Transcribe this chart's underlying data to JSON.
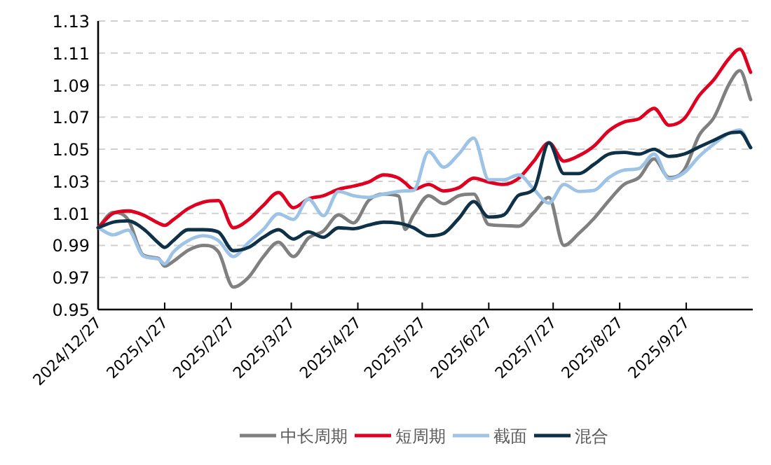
{
  "chart_data": {
    "type": "line",
    "x": [
      "2024-12-27",
      "2025-01-03",
      "2025-01-10",
      "2025-01-17",
      "2025-01-24",
      "2025-01-27",
      "2025-01-31",
      "2025-02-07",
      "2025-02-14",
      "2025-02-21",
      "2025-02-28",
      "2025-03-07",
      "2025-03-14",
      "2025-03-21",
      "2025-03-28",
      "2025-04-04",
      "2025-04-11",
      "2025-04-18",
      "2025-04-25",
      "2025-05-02",
      "2025-05-09",
      "2025-05-16",
      "2025-05-19",
      "2025-05-23",
      "2025-05-30",
      "2025-06-06",
      "2025-06-13",
      "2025-06-20",
      "2025-06-27",
      "2025-07-04",
      "2025-07-11",
      "2025-07-18",
      "2025-07-25",
      "2025-08-01",
      "2025-08-08",
      "2025-08-15",
      "2025-08-22",
      "2025-08-29",
      "2025-09-05",
      "2025-09-12",
      "2025-09-19",
      "2025-09-26",
      "2025-10-03",
      "2025-10-10",
      "2025-10-17",
      "2025-10-22",
      "2025-10-27"
    ],
    "series": [
      {
        "name": "中长周期",
        "color": "#808080",
        "values": [
          1.001,
          1.0106,
          1.006,
          0.984,
          0.982,
          0.977,
          0.98,
          0.987,
          0.99,
          0.986,
          0.964,
          0.97,
          0.983,
          0.992,
          0.983,
          0.9946,
          0.999,
          1.009,
          1.004,
          1.018,
          1.022,
          1.0208,
          1.0,
          1.009,
          1.021,
          1.016,
          1.021,
          1.022,
          1.003,
          1.0024,
          1.002,
          1.0106,
          1.02,
          0.99,
          0.9975,
          1.0068,
          1.018,
          1.028,
          1.0324,
          1.044,
          1.0324,
          1.037,
          1.0587,
          1.07,
          1.0907,
          1.099,
          1.081
        ]
      },
      {
        "name": "短周期",
        "color": "#e00020",
        "values": [
          1.001,
          1.01,
          1.0115,
          1.009,
          1.004,
          1.0025,
          1.006,
          1.013,
          1.017,
          1.018,
          1.001,
          1.006,
          1.015,
          1.023,
          1.0135,
          1.019,
          1.021,
          1.025,
          1.027,
          1.0295,
          1.034,
          1.032,
          1.029,
          1.025,
          1.028,
          1.024,
          1.026,
          1.032,
          1.0295,
          1.028,
          1.032,
          1.0426,
          1.054,
          1.0426,
          1.046,
          1.052,
          1.0616,
          1.067,
          1.069,
          1.0755,
          1.065,
          1.069,
          1.0834,
          1.0936,
          1.1067,
          1.1125,
          1.098
        ]
      },
      {
        "name": "截面",
        "color": "#9dc3e6",
        "values": [
          1.001,
          0.9966,
          0.9995,
          0.9835,
          0.9815,
          0.9785,
          0.9858,
          0.993,
          0.996,
          0.993,
          0.983,
          0.9917,
          1.0,
          1.0097,
          1.0062,
          1.019,
          1.0085,
          1.0237,
          1.021,
          1.02,
          1.022,
          1.0237,
          1.024,
          1.0243,
          1.0485,
          1.0388,
          1.047,
          1.057,
          1.031,
          1.031,
          1.034,
          1.025,
          1.0164,
          1.028,
          1.0237,
          1.0243,
          1.0324,
          1.037,
          1.038,
          1.047,
          1.0316,
          1.0353,
          1.0455,
          1.0534,
          1.06,
          1.062,
          1.051
        ]
      },
      {
        "name": "混合",
        "color": "#0e3147",
        "values": [
          1.001,
          1.0045,
          1.0053,
          1.0004,
          0.9917,
          0.9887,
          0.993,
          0.9998,
          0.9998,
          0.9984,
          0.9867,
          0.9887,
          0.9951,
          0.9998,
          0.994,
          0.9984,
          0.9951,
          1.001,
          1.0004,
          1.0027,
          1.0045,
          1.0039,
          1.003,
          1.001,
          0.996,
          0.9975,
          1.0068,
          1.0173,
          1.0077,
          1.009,
          1.0214,
          1.025,
          1.054,
          1.0348,
          1.0348,
          1.0406,
          1.047,
          1.048,
          1.047,
          1.05,
          1.0455,
          1.047,
          1.0514,
          1.0557,
          1.06,
          1.0607,
          1.051
        ]
      }
    ],
    "xlim": [
      "2024-12-27",
      "2025-10-28"
    ],
    "xticks": [
      {
        "value": "2024-12-27",
        "label": "2024/12/27"
      },
      {
        "value": "2025-01-27",
        "label": "2025/1/27"
      },
      {
        "value": "2025-02-27",
        "label": "2025/2/27"
      },
      {
        "value": "2025-03-27",
        "label": "2025/3/27"
      },
      {
        "value": "2025-04-27",
        "label": "2025/4/27"
      },
      {
        "value": "2025-05-27",
        "label": "2025/5/27"
      },
      {
        "value": "2025-06-27",
        "label": "2025/6/27"
      },
      {
        "value": "2025-07-27",
        "label": "2025/7/27"
      },
      {
        "value": "2025-08-27",
        "label": "2025/8/27"
      },
      {
        "value": "2025-09-27",
        "label": "2025/9/27"
      }
    ],
    "ylim": [
      0.95,
      1.13
    ],
    "yticks": [
      {
        "value": 0.95,
        "label": "0.95"
      },
      {
        "value": 0.97,
        "label": "0.97"
      },
      {
        "value": 0.99,
        "label": "0.99"
      },
      {
        "value": 1.01,
        "label": "1.01"
      },
      {
        "value": 1.03,
        "label": "1.03"
      },
      {
        "value": 1.05,
        "label": "1.05"
      },
      {
        "value": 1.07,
        "label": "1.07"
      },
      {
        "value": 1.09,
        "label": "1.09"
      },
      {
        "value": 1.11,
        "label": "1.11"
      },
      {
        "value": 1.13,
        "label": "1.13"
      }
    ],
    "grid": "y",
    "legend": "bottom",
    "marker": "none",
    "line_style": "solid"
  }
}
